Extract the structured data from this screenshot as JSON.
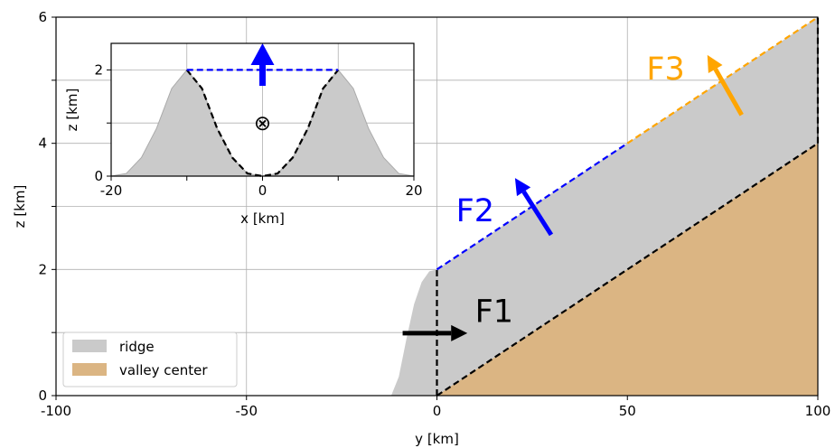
{
  "chart_data": [
    {
      "type": "area",
      "xlabel": "y [km]",
      "ylabel": "z [km]",
      "xlim": [
        -100,
        100
      ],
      "ylim": [
        0,
        6
      ],
      "xticks": [
        {
          "value": -100,
          "label": "-100"
        },
        {
          "value": -50,
          "label": "-50"
        },
        {
          "value": 0,
          "label": "0"
        },
        {
          "value": 50,
          "label": "50"
        },
        {
          "value": 100,
          "label": "100"
        }
      ],
      "yticks": [
        {
          "value": 0,
          "label": "0"
        },
        {
          "value": 2,
          "label": "2"
        },
        {
          "value": 4,
          "label": "4"
        },
        {
          "value": 6,
          "label": "6"
        }
      ],
      "grid": true,
      "legend": {
        "position": "lower-left",
        "items": [
          {
            "name": "ridge",
            "color": "#cacaca"
          },
          {
            "name": "valley center",
            "color": "#dbb583"
          }
        ]
      },
      "regions": [
        {
          "name": "ridge",
          "color": "#cacaca",
          "polygon": [
            [
              -12,
              0
            ],
            [
              -10,
              0.3
            ],
            [
              -8,
              0.9
            ],
            [
              -6,
              1.45
            ],
            [
              -4,
              1.8
            ],
            [
              -2,
              1.97
            ],
            [
              0,
              2
            ],
            [
              50,
              4
            ],
            [
              100,
              6
            ],
            [
              100,
              0
            ],
            [
              -12,
              0
            ]
          ]
        },
        {
          "name": "valley center",
          "color": "#dbb583",
          "polygon": [
            [
              0,
              0
            ],
            [
              100,
              4
            ],
            [
              100,
              0
            ]
          ]
        }
      ],
      "boundaries": [
        {
          "points": [
            [
              0,
              0
            ],
            [
              0,
              2
            ]
          ],
          "color": "#000000",
          "style": "dashed"
        },
        {
          "points": [
            [
              0,
              2
            ],
            [
              50,
              4
            ]
          ],
          "color": "#0000ff",
          "style": "dashed"
        },
        {
          "points": [
            [
              50,
              4
            ],
            [
              100,
              6
            ]
          ],
          "color": "#ffa500",
          "style": "dashed"
        },
        {
          "points": [
            [
              0,
              0
            ],
            [
              100,
              4
            ]
          ],
          "color": "#000000",
          "style": "dashed"
        },
        {
          "points": [
            [
              100,
              4
            ],
            [
              100,
              6
            ]
          ],
          "color": "#000000",
          "style": "dashed"
        }
      ],
      "annotations": [
        {
          "text": "F1",
          "color": "#000000",
          "x": 10,
          "y": 1.35
        },
        {
          "text": "F2",
          "color": "#0000ff",
          "x": 5,
          "y": 2.95
        },
        {
          "text": "F3",
          "color": "#ffa500",
          "x": 55,
          "y": 5.2
        }
      ],
      "arrows": [
        {
          "from": [
            -9,
            0.99
          ],
          "to": [
            8,
            0.99
          ],
          "color": "#000000"
        },
        {
          "from": [
            30,
            2.55
          ],
          "to": [
            20.5,
            3.45
          ],
          "color": "#0000ff"
        },
        {
          "from": [
            80,
            4.45
          ],
          "to": [
            71,
            5.4
          ],
          "color": "#ffa500"
        }
      ]
    },
    {
      "type": "area",
      "title": "",
      "xlabel": "x [km]",
      "ylabel": "z [km]",
      "xlim": [
        -20,
        20
      ],
      "ylim": [
        0,
        2.5
      ],
      "xticks": [
        {
          "value": -20,
          "label": "-20"
        },
        {
          "value": 0,
          "label": "0"
        },
        {
          "value": 20,
          "label": "20"
        }
      ],
      "yticks": [
        {
          "value": 0,
          "label": "0"
        },
        {
          "value": 2,
          "label": "2"
        }
      ],
      "grid": true,
      "fill": {
        "name": "ridge",
        "color": "#cacaca",
        "x": [
          -20,
          -18,
          -16,
          -14,
          -12,
          -10,
          -8,
          -6,
          -4,
          -2,
          0,
          2,
          4,
          6,
          8,
          10,
          12,
          14,
          16,
          18,
          20
        ],
        "y": [
          0,
          0.05,
          0.35,
          0.9,
          1.65,
          2.0,
          1.65,
          0.9,
          0.35,
          0.05,
          0,
          0.05,
          0.35,
          0.9,
          1.65,
          2.0,
          1.65,
          0.9,
          0.35,
          0.05,
          0
        ]
      },
      "valley_boundary": {
        "color": "#000000",
        "style": "dashed",
        "x": [
          -10,
          -8,
          -6,
          -4,
          -2,
          0,
          2,
          4,
          6,
          8,
          10
        ],
        "y": [
          2.0,
          1.65,
          0.9,
          0.35,
          0.05,
          0,
          0.05,
          0.35,
          0.9,
          1.65,
          2.0
        ]
      },
      "top_boundary": {
        "color": "#0000ff",
        "style": "dashed",
        "x": [
          -10,
          10
        ],
        "y": [
          2,
          2
        ]
      },
      "arrow": {
        "from": [
          0,
          1.7
        ],
        "to": [
          0,
          2.5
        ],
        "color": "#0000ff"
      },
      "marker": {
        "symbol": "⊗",
        "x": 0,
        "y": 1.0
      }
    }
  ]
}
